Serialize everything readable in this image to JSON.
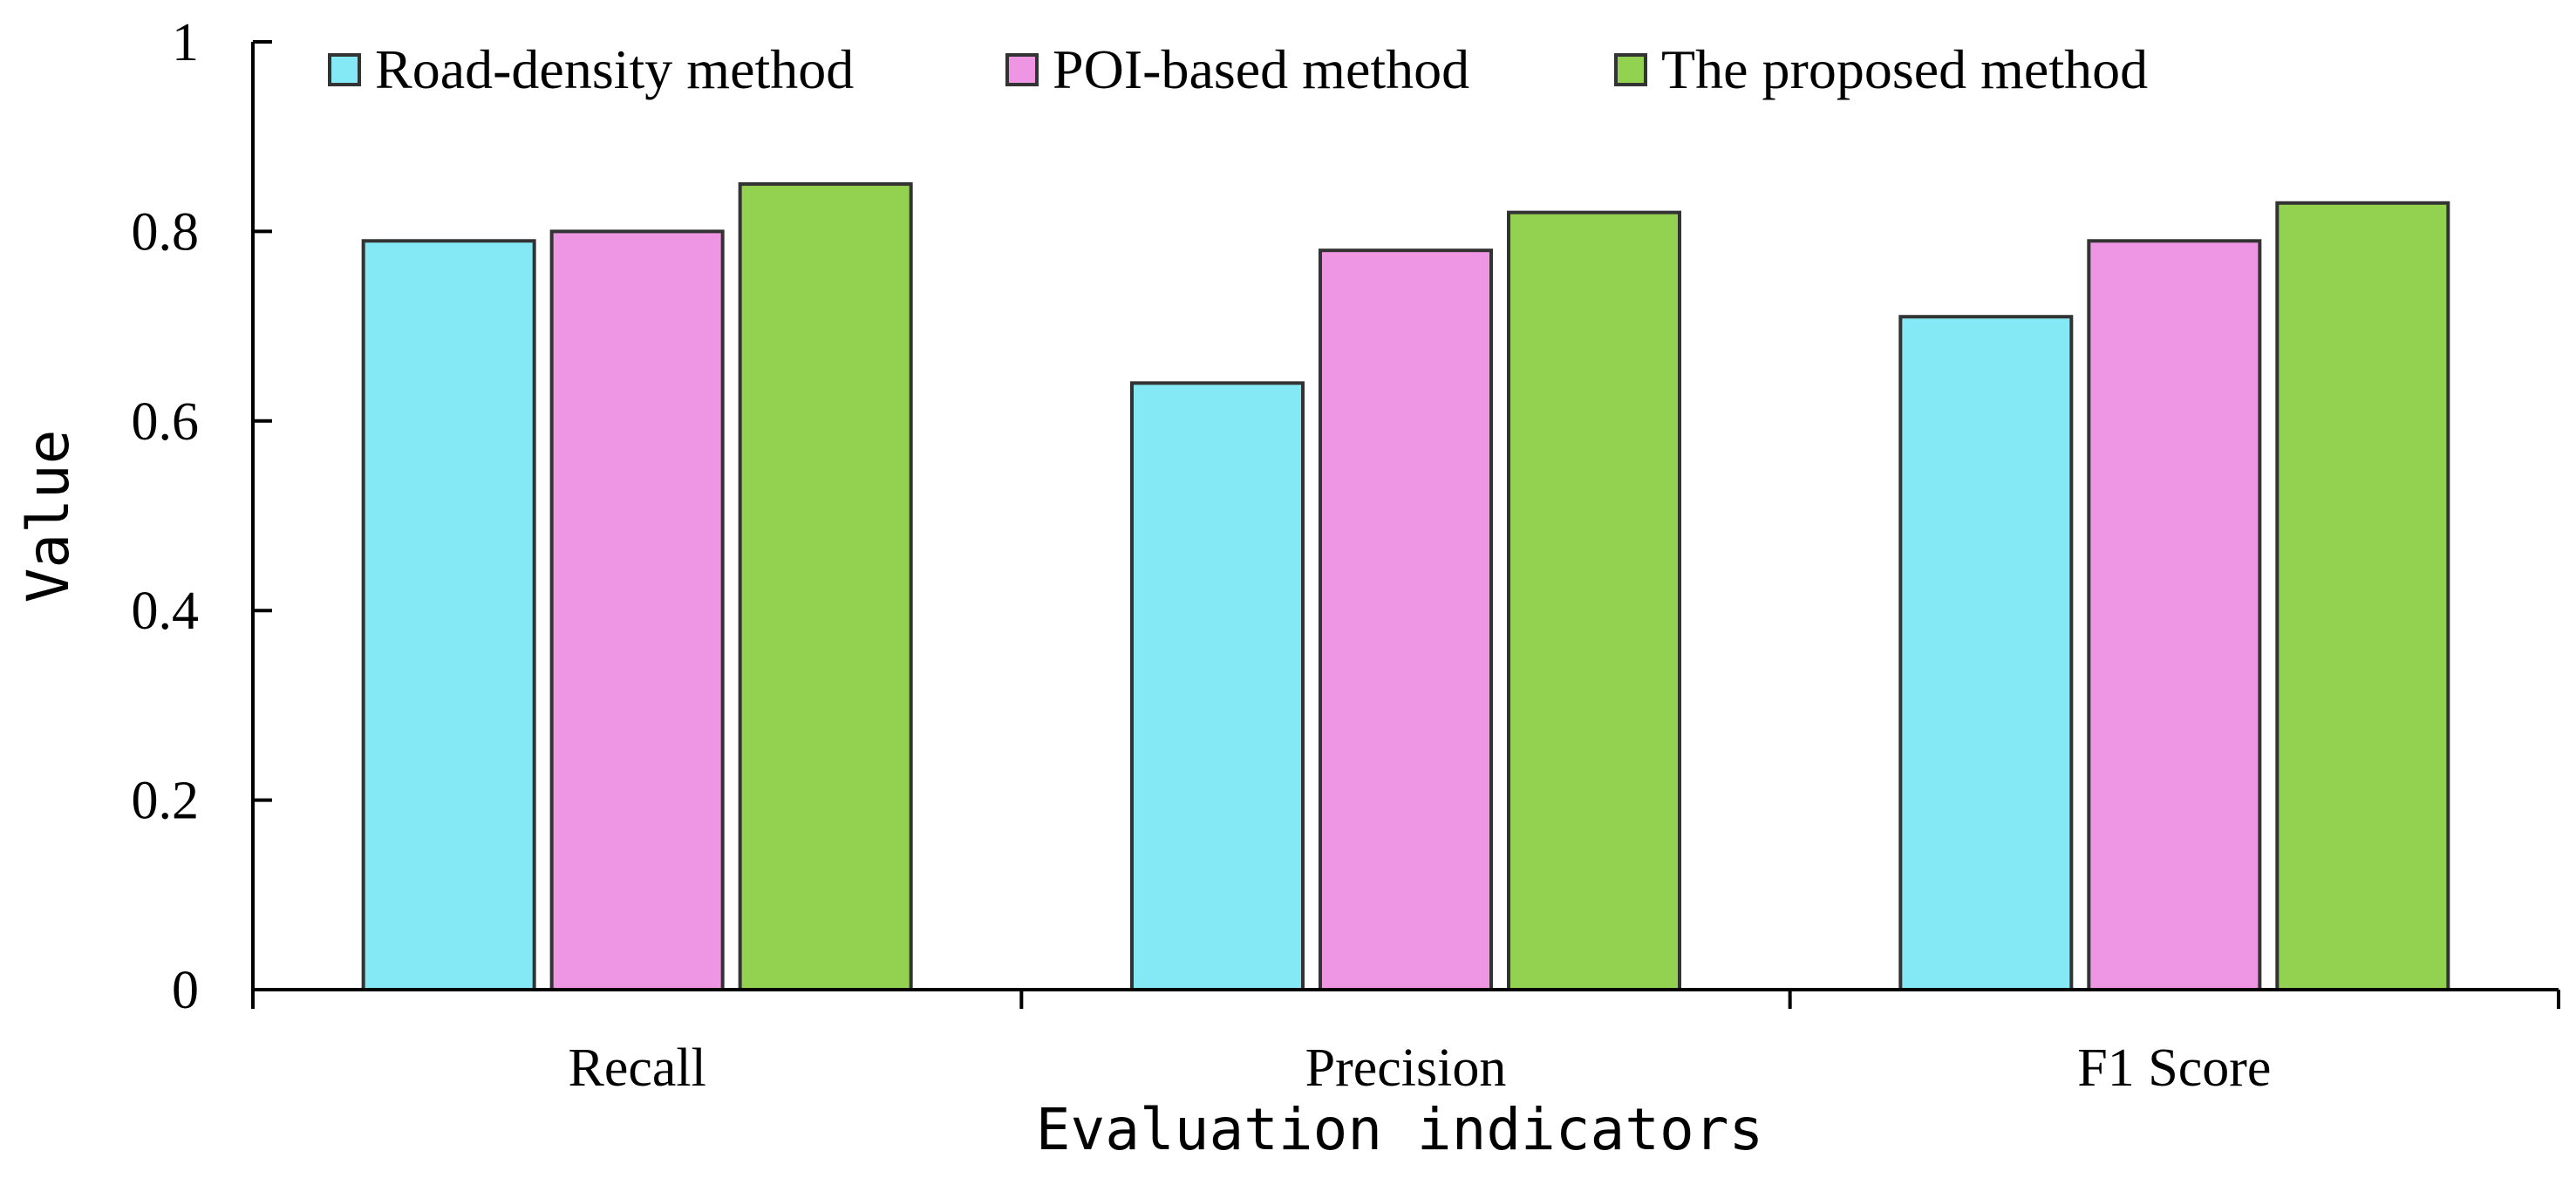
{
  "chart_data": {
    "type": "bar",
    "title": "",
    "xlabel": "Evaluation indicators",
    "ylabel": "Value",
    "ylim": [
      0,
      1
    ],
    "yticks": [
      "0",
      "0.2",
      "0.4",
      "0.6",
      "0.8",
      "1"
    ],
    "categories": [
      "Recall",
      "Precision",
      "F1 Score"
    ],
    "series": [
      {
        "name": "Road-density method",
        "color": "#85E9F5",
        "values": [
          0.79,
          0.64,
          0.71
        ]
      },
      {
        "name": "POI-based method",
        "color": "#EE96E3",
        "values": [
          0.8,
          0.78,
          0.79
        ]
      },
      {
        "name": "The proposed method",
        "color": "#93D251",
        "values": [
          0.85,
          0.82,
          0.83
        ]
      }
    ],
    "legend_position": "top",
    "grid": false
  }
}
